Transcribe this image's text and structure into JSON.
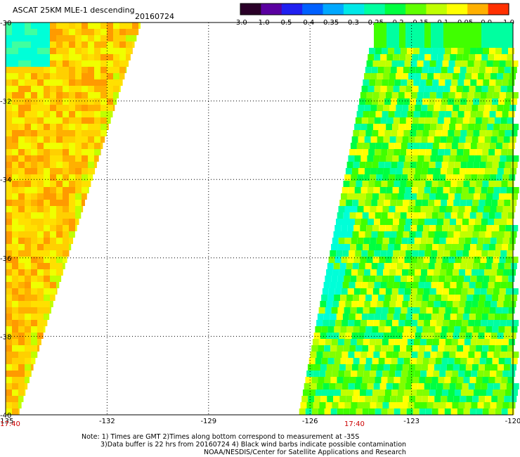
{
  "header": {
    "title": "ASCAT 25KM MLE-1 descending",
    "date": "20160724"
  },
  "colorbar": {
    "labels": [
      "-3.0",
      "-1.0",
      "-0.5",
      "-0.4",
      "-0.35",
      "-0.3",
      "-0.25",
      "-0.2",
      "-0.15",
      "-0.1",
      "-0.05",
      "0.0",
      "1.0"
    ],
    "colors": [
      "#2a0028",
      "#5a00a0",
      "#2020f0",
      "#0060ff",
      "#00a8ff",
      "#00e8e8",
      "#00ffa0",
      "#00ff40",
      "#60ff00",
      "#c0ff00",
      "#ffff00",
      "#ffb000",
      "#ff3000"
    ]
  },
  "map": {
    "lon_ticks": [
      "-135",
      "-132",
      "-129",
      "-126",
      "-123",
      "-120"
    ],
    "lat_ticks": [
      "-30",
      "-32",
      "-34",
      "-36",
      "-38",
      "-40"
    ],
    "lon_range": [
      -135,
      -120
    ],
    "lat_range": [
      -30,
      -40
    ],
    "times": [
      "17:40",
      "17:40"
    ],
    "swath_colors": {
      "west": [
        "#ffd000",
        "#ffb000",
        "#ff9a00",
        "#ffe000",
        "#f0ff00"
      ],
      "east": [
        "#40ff00",
        "#00ff40",
        "#80ff00",
        "#00ffa0",
        "#c0ff00",
        "#ffff00"
      ]
    }
  },
  "footer": {
    "note_line1": "Note: 1) Times are GMT 2)Times along bottom correspond to measurement at -35S",
    "note_line2": "3)Data buffer is 22 hrs from 20160724 4) Black wind barbs indicate possible contamination",
    "credit": "NOAA/NESDIS/Center for Satellite Applications and Research"
  }
}
